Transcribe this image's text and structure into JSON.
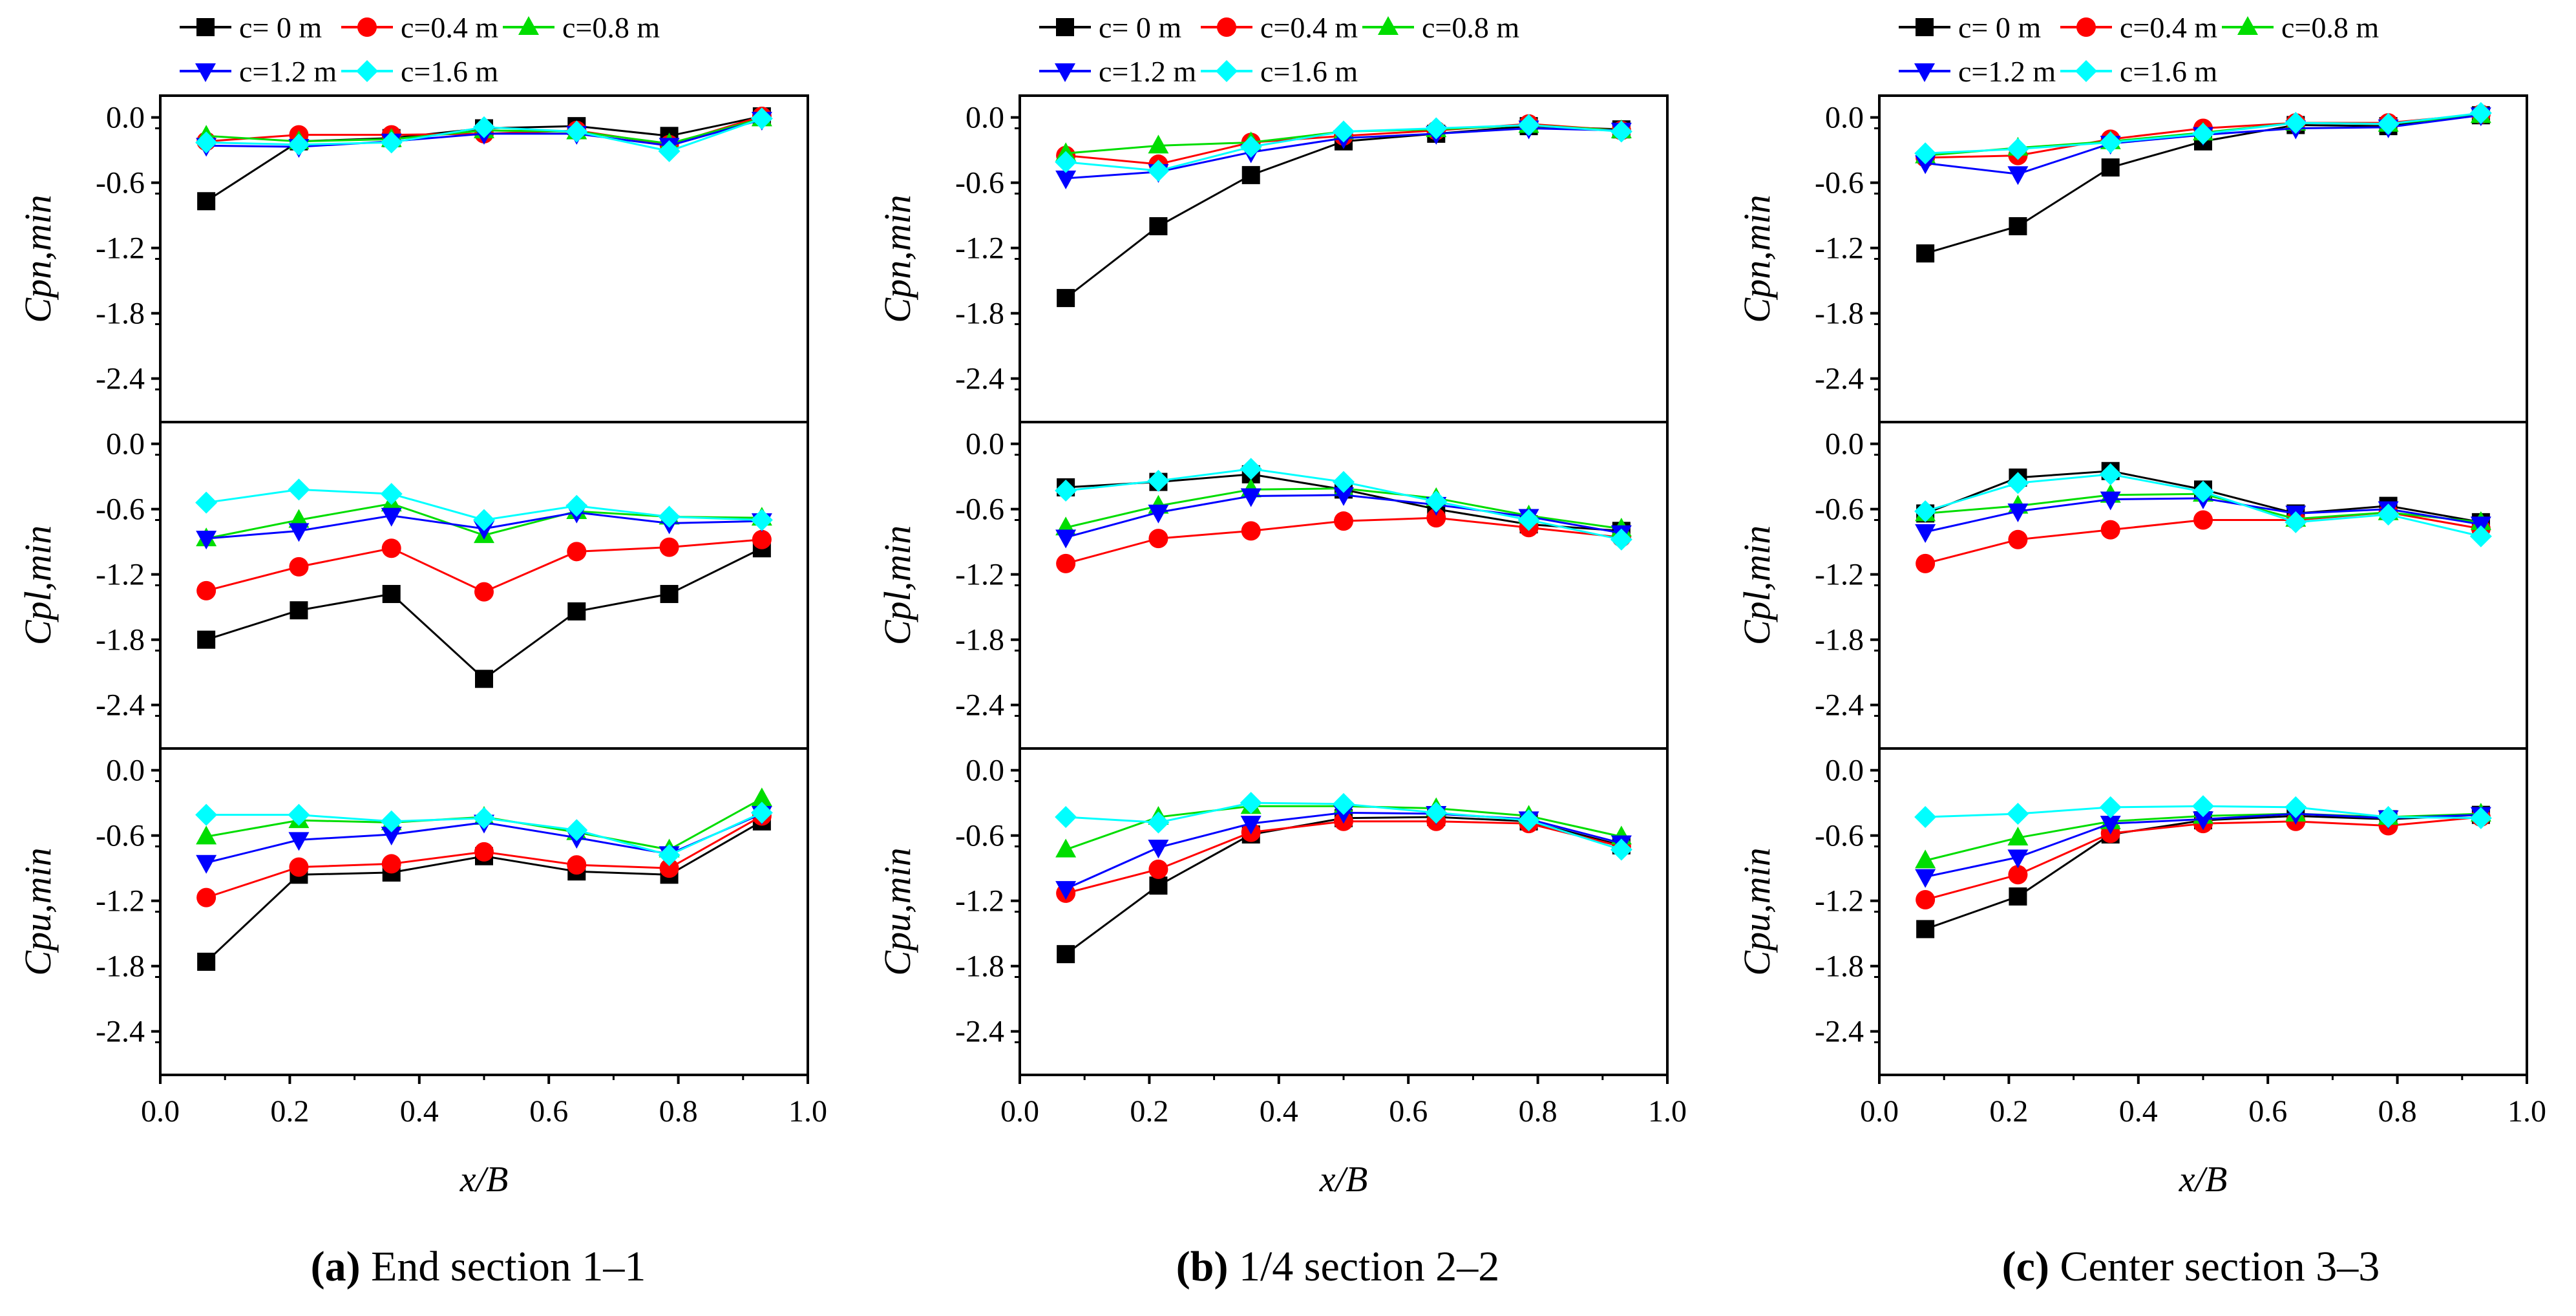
{
  "chart_data": [
    {
      "type": "line",
      "caption_letter": "(a)",
      "caption_text": " End section 1–1",
      "xlabel": "x/B",
      "xlim": [
        0.0,
        1.0
      ],
      "xticks": [
        0.0,
        0.2,
        0.4,
        0.6,
        0.8,
        1.0
      ],
      "x": [
        0.071,
        0.214,
        0.357,
        0.5,
        0.643,
        0.786,
        0.929
      ],
      "legend": [
        "c= 0  m",
        "c=0.4 m",
        "c=0.8 m",
        "c=1.2 m",
        "c=1.6 m"
      ],
      "panels": [
        {
          "ylabel": "Cpn,min",
          "ylim": [
            -2.8,
            0.2
          ],
          "yticks": [
            0.0,
            -0.6,
            -1.2,
            -1.8,
            -2.4
          ],
          "series": [
            {
              "name": "c= 0  m",
              "color": "#000000",
              "marker": "square",
              "values": [
                -0.77,
                -0.22,
                -0.19,
                -0.1,
                -0.08,
                -0.17,
                0.01
              ]
            },
            {
              "name": "c=0.4 m",
              "color": "#ff0000",
              "marker": "circle",
              "values": [
                -0.22,
                -0.16,
                -0.16,
                -0.15,
                -0.12,
                -0.25,
                0.01
              ]
            },
            {
              "name": "c=0.8 m",
              "color": "#00dd00",
              "marker": "triangle-up",
              "values": [
                -0.17,
                -0.22,
                -0.2,
                -0.12,
                -0.13,
                -0.24,
                -0.01
              ]
            },
            {
              "name": "c=1.2 m",
              "color": "#0000ff",
              "marker": "triangle-down",
              "values": [
                -0.26,
                -0.27,
                -0.22,
                -0.15,
                -0.15,
                -0.26,
                -0.02
              ]
            },
            {
              "name": "c=1.6 m",
              "color": "#00ffff",
              "marker": "diamond",
              "values": [
                -0.23,
                -0.25,
                -0.23,
                -0.09,
                -0.13,
                -0.31,
                -0.01
              ]
            }
          ]
        },
        {
          "ylabel": "Cpl,min",
          "ylim": [
            -2.8,
            0.2
          ],
          "yticks": [
            0.0,
            -0.6,
            -1.2,
            -1.8,
            -2.4
          ],
          "series": [
            {
              "name": "c= 0  m",
              "color": "#000000",
              "marker": "square",
              "values": [
                -1.8,
                -1.53,
                -1.38,
                -2.16,
                -1.54,
                -1.38,
                -0.96
              ]
            },
            {
              "name": "c=0.4 m",
              "color": "#ff0000",
              "marker": "circle",
              "values": [
                -1.35,
                -1.13,
                -0.96,
                -1.36,
                -0.99,
                -0.95,
                -0.88
              ]
            },
            {
              "name": "c=0.8 m",
              "color": "#00dd00",
              "marker": "triangle-up",
              "values": [
                -0.87,
                -0.7,
                -0.55,
                -0.84,
                -0.62,
                -0.67,
                -0.68
              ]
            },
            {
              "name": "c=1.2 m",
              "color": "#0000ff",
              "marker": "triangle-down",
              "values": [
                -0.87,
                -0.8,
                -0.66,
                -0.78,
                -0.63,
                -0.73,
                -0.71
              ]
            },
            {
              "name": "c=1.6 m",
              "color": "#00ffff",
              "marker": "diamond",
              "values": [
                -0.54,
                -0.42,
                -0.46,
                -0.7,
                -0.57,
                -0.67,
                -0.7
              ]
            }
          ]
        },
        {
          "ylabel": "Cpu,min",
          "ylim": [
            -2.8,
            0.2
          ],
          "yticks": [
            0.0,
            -0.6,
            -1.2,
            -1.8,
            -2.4
          ],
          "series": [
            {
              "name": "c= 0  m",
              "color": "#000000",
              "marker": "square",
              "values": [
                -1.76,
                -0.96,
                -0.94,
                -0.79,
                -0.93,
                -0.96,
                -0.47
              ]
            },
            {
              "name": "c=0.4 m",
              "color": "#ff0000",
              "marker": "circle",
              "values": [
                -1.17,
                -0.89,
                -0.86,
                -0.75,
                -0.87,
                -0.9,
                -0.42
              ]
            },
            {
              "name": "c=0.8 m",
              "color": "#00dd00",
              "marker": "triangle-up",
              "values": [
                -0.61,
                -0.46,
                -0.48,
                -0.43,
                -0.57,
                -0.73,
                -0.26
              ]
            },
            {
              "name": "c=1.2 m",
              "color": "#0000ff",
              "marker": "triangle-down",
              "values": [
                -0.85,
                -0.64,
                -0.59,
                -0.48,
                -0.62,
                -0.77,
                -0.4
              ]
            },
            {
              "name": "c=1.6 m",
              "color": "#00ffff",
              "marker": "diamond",
              "values": [
                -0.41,
                -0.41,
                -0.47,
                -0.44,
                -0.55,
                -0.78,
                -0.39
              ]
            }
          ]
        }
      ]
    },
    {
      "type": "line",
      "caption_letter": "(b)",
      "caption_text": " 1/4 section 2–2",
      "xlabel": "x/B",
      "xlim": [
        0.0,
        1.0
      ],
      "xticks": [
        0.0,
        0.2,
        0.4,
        0.6,
        0.8,
        1.0
      ],
      "x": [
        0.071,
        0.214,
        0.357,
        0.5,
        0.643,
        0.786,
        0.929
      ],
      "legend": [
        "c= 0  m",
        "c=0.4 m",
        "c=0.8 m",
        "c=1.2 m",
        "c=1.6 m"
      ],
      "panels": [
        {
          "ylabel": "Cpn,min",
          "ylim": [
            -2.8,
            0.2
          ],
          "yticks": [
            0.0,
            -0.6,
            -1.2,
            -1.8,
            -2.4
          ],
          "series": [
            {
              "name": "c= 0  m",
              "color": "#000000",
              "marker": "square",
              "values": [
                -1.66,
                -1.0,
                -0.53,
                -0.22,
                -0.15,
                -0.08,
                -0.11
              ]
            },
            {
              "name": "c=0.4 m",
              "color": "#ff0000",
              "marker": "circle",
              "values": [
                -0.35,
                -0.43,
                -0.23,
                -0.17,
                -0.12,
                -0.06,
                -0.12
              ]
            },
            {
              "name": "c=0.8 m",
              "color": "#00dd00",
              "marker": "triangle-up",
              "values": [
                -0.33,
                -0.26,
                -0.23,
                -0.13,
                -0.11,
                -0.07,
                -0.12
              ]
            },
            {
              "name": "c=1.2 m",
              "color": "#0000ff",
              "marker": "triangle-down",
              "values": [
                -0.56,
                -0.5,
                -0.32,
                -0.19,
                -0.15,
                -0.1,
                -0.12
              ]
            },
            {
              "name": "c=1.6 m",
              "color": "#00ffff",
              "marker": "diamond",
              "values": [
                -0.41,
                -0.49,
                -0.27,
                -0.13,
                -0.1,
                -0.07,
                -0.13
              ]
            }
          ]
        },
        {
          "ylabel": "Cpl,min",
          "ylim": [
            -2.8,
            0.2
          ],
          "yticks": [
            0.0,
            -0.6,
            -1.2,
            -1.8,
            -2.4
          ],
          "series": [
            {
              "name": "c= 0  m",
              "color": "#000000",
              "marker": "square",
              "values": [
                -0.4,
                -0.35,
                -0.28,
                -0.42,
                -0.6,
                -0.74,
                -0.8
              ]
            },
            {
              "name": "c=0.4 m",
              "color": "#ff0000",
              "marker": "circle",
              "values": [
                -1.1,
                -0.87,
                -0.8,
                -0.71,
                -0.68,
                -0.77,
                -0.86
              ]
            },
            {
              "name": "c=0.8 m",
              "color": "#00dd00",
              "marker": "triangle-up",
              "values": [
                -0.77,
                -0.57,
                -0.42,
                -0.41,
                -0.5,
                -0.66,
                -0.78
              ]
            },
            {
              "name": "c=1.2 m",
              "color": "#0000ff",
              "marker": "triangle-down",
              "values": [
                -0.86,
                -0.63,
                -0.48,
                -0.47,
                -0.56,
                -0.67,
                -0.82
              ]
            },
            {
              "name": "c=1.6 m",
              "color": "#00ffff",
              "marker": "diamond",
              "values": [
                -0.43,
                -0.34,
                -0.23,
                -0.35,
                -0.53,
                -0.7,
                -0.88
              ]
            }
          ]
        },
        {
          "ylabel": "Cpu,min",
          "ylim": [
            -2.8,
            0.2
          ],
          "yticks": [
            0.0,
            -0.6,
            -1.2,
            -1.8,
            -2.4
          ],
          "series": [
            {
              "name": "c= 0  m",
              "color": "#000000",
              "marker": "square",
              "values": [
                -1.69,
                -1.06,
                -0.59,
                -0.44,
                -0.43,
                -0.47,
                -0.69
              ]
            },
            {
              "name": "c=0.4 m",
              "color": "#ff0000",
              "marker": "circle",
              "values": [
                -1.13,
                -0.91,
                -0.57,
                -0.47,
                -0.47,
                -0.49,
                -0.7
              ]
            },
            {
              "name": "c=0.8 m",
              "color": "#00dd00",
              "marker": "triangle-up",
              "values": [
                -0.73,
                -0.43,
                -0.33,
                -0.33,
                -0.35,
                -0.42,
                -0.61
              ]
            },
            {
              "name": "c=1.2 m",
              "color": "#0000ff",
              "marker": "triangle-down",
              "values": [
                -1.09,
                -0.71,
                -0.49,
                -0.39,
                -0.4,
                -0.45,
                -0.67
              ]
            },
            {
              "name": "c=1.6 m",
              "color": "#00ffff",
              "marker": "diamond",
              "values": [
                -0.43,
                -0.48,
                -0.3,
                -0.31,
                -0.39,
                -0.46,
                -0.73
              ]
            }
          ]
        }
      ]
    },
    {
      "type": "line",
      "caption_letter": "(c)",
      "caption_text": " Center section 3–3",
      "xlabel": "x/B",
      "xlim": [
        0.0,
        1.0
      ],
      "xticks": [
        0.0,
        0.2,
        0.4,
        0.6,
        0.8,
        1.0
      ],
      "x": [
        0.071,
        0.214,
        0.357,
        0.5,
        0.643,
        0.786,
        0.929
      ],
      "legend": [
        "c= 0  m",
        "c=0.4 m",
        "c=0.8 m",
        "c=1.2 m",
        "c=1.6 m"
      ],
      "panels": [
        {
          "ylabel": "Cpn,min",
          "ylim": [
            -2.8,
            0.2
          ],
          "yticks": [
            0.0,
            -0.6,
            -1.2,
            -1.8,
            -2.4
          ],
          "series": [
            {
              "name": "c= 0  m",
              "color": "#000000",
              "marker": "square",
              "values": [
                -1.25,
                -1.0,
                -0.46,
                -0.22,
                -0.07,
                -0.08,
                0.02
              ]
            },
            {
              "name": "c=0.4 m",
              "color": "#ff0000",
              "marker": "circle",
              "values": [
                -0.37,
                -0.35,
                -0.2,
                -0.1,
                -0.05,
                -0.05,
                0.03
              ]
            },
            {
              "name": "c=0.8 m",
              "color": "#00dd00",
              "marker": "triangle-up",
              "values": [
                -0.35,
                -0.28,
                -0.22,
                -0.14,
                -0.05,
                -0.06,
                0.02
              ]
            },
            {
              "name": "c=1.2 m",
              "color": "#0000ff",
              "marker": "triangle-down",
              "values": [
                -0.42,
                -0.52,
                -0.24,
                -0.16,
                -0.1,
                -0.09,
                0.02
              ]
            },
            {
              "name": "c=1.6 m",
              "color": "#00ffff",
              "marker": "diamond",
              "values": [
                -0.33,
                -0.29,
                -0.23,
                -0.15,
                -0.05,
                -0.06,
                0.04
              ]
            }
          ]
        },
        {
          "ylabel": "Cpl,min",
          "ylim": [
            -2.8,
            0.2
          ],
          "yticks": [
            0.0,
            -0.6,
            -1.2,
            -1.8,
            -2.4
          ],
          "series": [
            {
              "name": "c= 0  m",
              "color": "#000000",
              "marker": "square",
              "values": [
                -0.64,
                -0.31,
                -0.25,
                -0.42,
                -0.64,
                -0.57,
                -0.72
              ]
            },
            {
              "name": "c=0.4 m",
              "color": "#ff0000",
              "marker": "circle",
              "values": [
                -1.1,
                -0.88,
                -0.79,
                -0.7,
                -0.7,
                -0.63,
                -0.78
              ]
            },
            {
              "name": "c=0.8 m",
              "color": "#00dd00",
              "marker": "triangle-up",
              "values": [
                -0.64,
                -0.57,
                -0.47,
                -0.46,
                -0.69,
                -0.63,
                -0.72
              ]
            },
            {
              "name": "c=1.2 m",
              "color": "#0000ff",
              "marker": "triangle-down",
              "values": [
                -0.81,
                -0.62,
                -0.51,
                -0.5,
                -0.64,
                -0.6,
                -0.74
              ]
            },
            {
              "name": "c=1.6 m",
              "color": "#00ffff",
              "marker": "diamond",
              "values": [
                -0.62,
                -0.36,
                -0.28,
                -0.44,
                -0.72,
                -0.65,
                -0.85
              ]
            }
          ]
        },
        {
          "ylabel": "Cpu,min",
          "ylim": [
            -2.8,
            0.2
          ],
          "yticks": [
            0.0,
            -0.6,
            -1.2,
            -1.8,
            -2.4
          ],
          "series": [
            {
              "name": "c= 0  m",
              "color": "#000000",
              "marker": "square",
              "values": [
                -1.46,
                -1.16,
                -0.59,
                -0.46,
                -0.42,
                -0.45,
                -0.41
              ]
            },
            {
              "name": "c=0.4 m",
              "color": "#ff0000",
              "marker": "circle",
              "values": [
                -1.19,
                -0.96,
                -0.58,
                -0.49,
                -0.47,
                -0.51,
                -0.43
              ]
            },
            {
              "name": "c=0.8 m",
              "color": "#00dd00",
              "marker": "triangle-up",
              "values": [
                -0.83,
                -0.62,
                -0.47,
                -0.42,
                -0.4,
                -0.43,
                -0.4
              ]
            },
            {
              "name": "c=1.2 m",
              "color": "#0000ff",
              "marker": "triangle-down",
              "values": [
                -0.98,
                -0.8,
                -0.49,
                -0.45,
                -0.4,
                -0.44,
                -0.41
              ]
            },
            {
              "name": "c=1.6 m",
              "color": "#00ffff",
              "marker": "diamond",
              "values": [
                -0.43,
                -0.4,
                -0.34,
                -0.33,
                -0.34,
                -0.43,
                -0.44
              ]
            }
          ]
        }
      ]
    }
  ]
}
